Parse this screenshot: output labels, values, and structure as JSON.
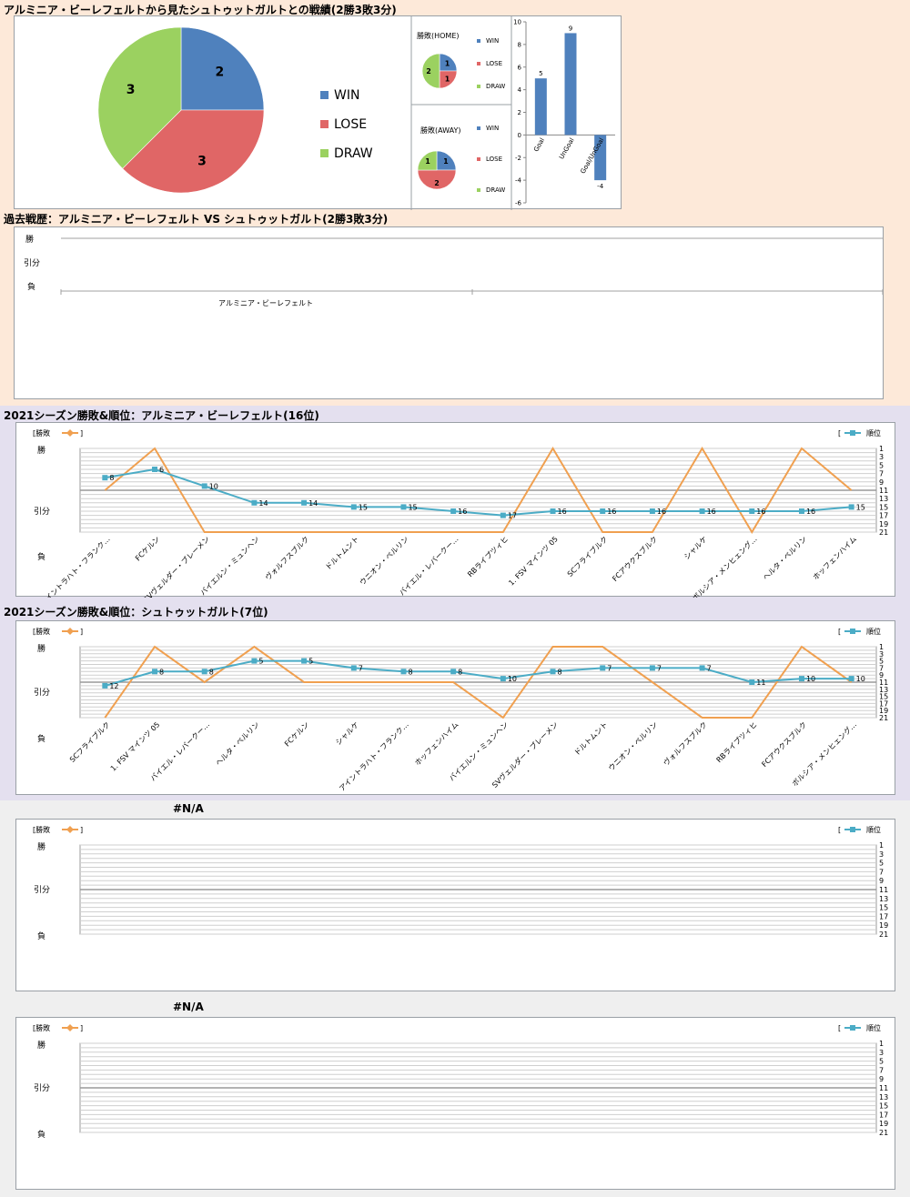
{
  "sections": {
    "summary_title": "アルミニア・ビーレフェルトから見たシュトゥットガルトとの戦績(2勝3敗3分)",
    "history_title": "過去戦歴：アルミニア・ビーレフェルト VS シュトゥットガルト(2勝3敗3分)",
    "season1_title": "2021シーズン勝敗&順位：アルミニア・ビーレフェルト(16位)",
    "season2_title": "2021シーズン勝敗&順位：シュトゥットガルト(7位)",
    "empty1_title": "#N/A",
    "empty2_title": "#N/A"
  },
  "colors": {
    "win": "#4f81bd",
    "lose": "#e06666",
    "draw": "#9bd160",
    "result_line": "#f0a050",
    "rank_line": "#4bacc6",
    "band_peach": "#fde9d9",
    "band_lavender": "#e4e0ef",
    "band_gray": "#efefef"
  },
  "result_axis": {
    "win": "勝",
    "draw": "引分",
    "lose": "負"
  },
  "legend_common": {
    "result": "[勝敗",
    "result_close": "]",
    "rank_open": "[",
    "rank": "順位"
  },
  "rank_ticks": [
    "1",
    "3",
    "5",
    "7",
    "9",
    "11",
    "13",
    "15",
    "17",
    "19",
    "21"
  ],
  "chart_data": [
    {
      "type": "pie",
      "id": "overall",
      "labels": [
        "WIN",
        "LOSE",
        "DRAW"
      ],
      "values": [
        2,
        3,
        3
      ],
      "legend_placement": "right"
    },
    {
      "type": "pie",
      "id": "home",
      "title": "勝敗(HOME)",
      "labels": [
        "WIN",
        "LOSE",
        "DRAW"
      ],
      "values": [
        1,
        1,
        2
      ],
      "legend_placement": "right"
    },
    {
      "type": "pie",
      "id": "away",
      "title": "勝敗(AWAY)",
      "labels": [
        "WIN",
        "LOSE",
        "DRAW"
      ],
      "values": [
        1,
        2,
        1
      ],
      "legend_placement": "right"
    },
    {
      "type": "bar",
      "id": "goals",
      "categories": [
        "Goal",
        "UnGoal",
        "Goal/UnGoal"
      ],
      "values": [
        5,
        9,
        -4
      ],
      "ylim": [
        -6,
        10
      ],
      "yticks": [
        10,
        8,
        6,
        4,
        2,
        0,
        -2,
        -4,
        -6
      ]
    },
    {
      "type": "line",
      "id": "history",
      "y_categories": [
        "勝",
        "引分",
        "負"
      ],
      "x_label": "アルミニア・ビーレフェルト",
      "series": []
    },
    {
      "type": "line",
      "id": "season_bielefeld",
      "categories": [
        "アイントラハト・フランク…",
        "FCケルン",
        "SVヴェルダー・ブレーメン",
        "バイエルン・ミュンヘン",
        "ヴォルフスブルク",
        "ドルトムント",
        "ウニオン・ベルリン",
        "バイエル・レバークー…",
        "RBライプツィヒ",
        "1. FSV マインツ 05",
        "SCフライブルク",
        "FCアウクスブルク",
        "シャルケ",
        "ボルシア・メンヒェング…",
        "ヘルタ・ベルリン",
        "ホッフェンハイム"
      ],
      "results": [
        "draw",
        "win",
        "lose",
        "lose",
        "lose",
        "lose",
        "lose",
        "lose",
        "lose",
        "win",
        "lose",
        "lose",
        "win",
        "lose",
        "win",
        "draw"
      ],
      "ranks": [
        8,
        6,
        10,
        14,
        14,
        15,
        15,
        16,
        17,
        16,
        16,
        16,
        16,
        16,
        16,
        15
      ],
      "rank_range": [
        1,
        21
      ]
    },
    {
      "type": "line",
      "id": "season_stuttgart",
      "categories": [
        "SCフライブルク",
        "1. FSV マインツ 05",
        "バイエル・レバークー…",
        "ヘルタ・ベルリン",
        "FCケルン",
        "シャルケ",
        "アイントラハト・フランク…",
        "ホッフェンハイム",
        "バイエルン・ミュンヘン",
        "SVヴェルダー・ブレーメン",
        "ドルトムント",
        "ウニオン・ベルリン",
        "ヴォルフスブルク",
        "RBライプツィヒ",
        "FCアウクスブルク",
        "ボルシア・メンヒェング…"
      ],
      "results": [
        "lose",
        "win",
        "draw",
        "win",
        "draw",
        "draw",
        "draw",
        "draw",
        "lose",
        "win",
        "win",
        "draw",
        "lose",
        "lose",
        "win",
        "draw"
      ],
      "ranks": [
        12,
        8,
        8,
        5,
        5,
        7,
        8,
        8,
        10,
        8,
        7,
        7,
        7,
        11,
        10,
        10
      ],
      "rank_range": [
        1,
        21
      ]
    }
  ]
}
